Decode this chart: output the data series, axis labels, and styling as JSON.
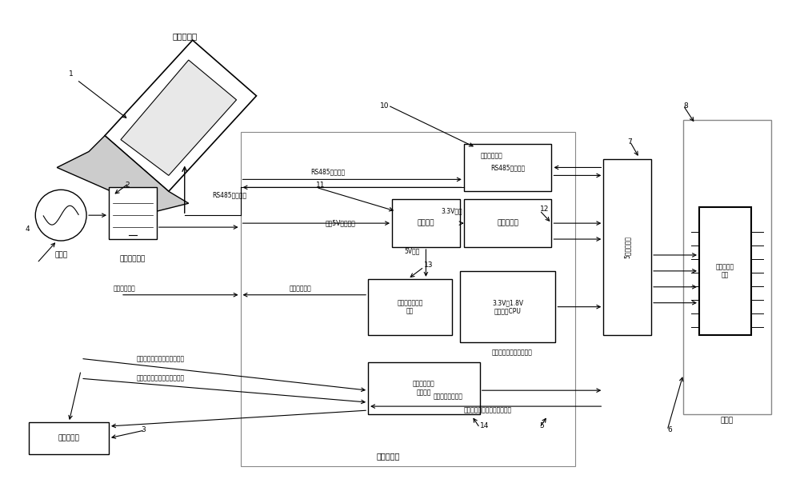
{
  "bg_color": "#ffffff",
  "line_color": "#000000",
  "box_color": "#000000",
  "light_gray": "#aaaaaa",
  "title": "",
  "components": {
    "laptop_label": "上位计算机",
    "oscilloscope_label": "示波器",
    "power_supply_label": "外部供电电源",
    "status_panel_label": "状态指示板",
    "monitoring_board_label": "监测控制板",
    "data_bus_label": "5米数据排线",
    "circuit_board_label": "电路板",
    "processor_label": "被测空间处理\n器",
    "rs485_module_label": "RS485电平模块",
    "power_module_label": "供电模块",
    "storage_module_label": "存储器模块",
    "cpu_monitor_label": "3.3V及1.8V\n供电检测CPU\n被测空间处理器工作电流",
    "current_monitor_label": "处理器电流监控\n模块",
    "reset_module_label": "复位输入信号\n整形模块"
  },
  "labels": {
    "num_1": "1",
    "num_2": "2",
    "num_3": "3",
    "num_4": "4",
    "num_5": "5",
    "num_6": "6",
    "num_7": "7",
    "num_8": "8",
    "num_10": "10",
    "num_11": "11",
    "num_12": "12",
    "num_13": "13",
    "num_14": "14"
  },
  "signals": {
    "rs485_signal_left": "RS485电平信号",
    "rs485_signal_right": "RS485电平信号",
    "serial_data": "串口数据信号",
    "5v_supply_left": "5V供电",
    "external_5v": "外部5V直流供电",
    "3v3_supply": "3.3V供电",
    "current_monitor_signal_left": "电流监控信号",
    "current_monitor_signal_right": "电流监控信号",
    "reset_input": "被测空间处理器复位输入信号",
    "status_signal": "被测空间处理器状态指示信号",
    "reset_shaped": "整形后的复位信号",
    "status_indicator": "被测空间处理器状态指示信号"
  }
}
